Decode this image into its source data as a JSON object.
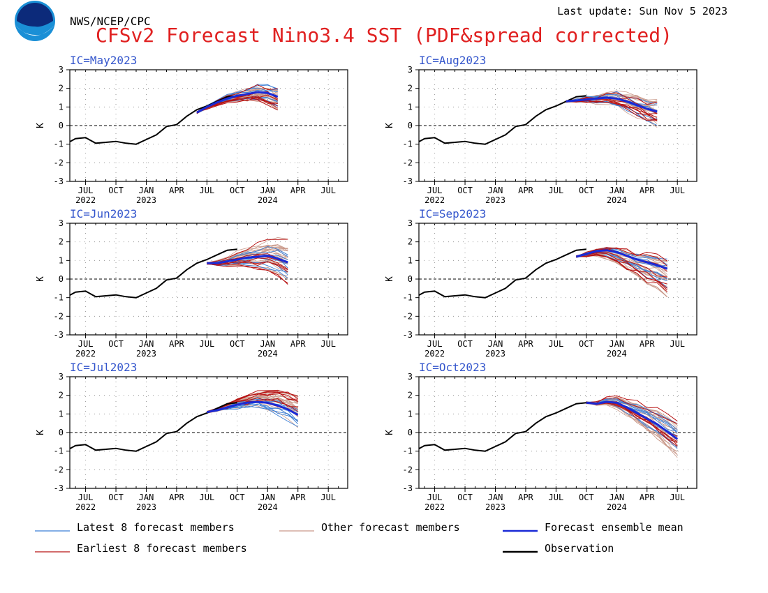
{
  "header": {
    "agency": "NWS/NCEP/CPC",
    "last_update": "Last update: Sun Nov 5 2023",
    "title": "CFSv2 Forecast Nino3.4 SST (PDF&spread corrected)",
    "logo_text": "NOAA"
  },
  "colors": {
    "title": "#e02020",
    "ic_label": "#3355cc",
    "latest": "#3a7fd6",
    "other": "#c9998a",
    "mean": "#1a2ad6",
    "earliest": "#b81414",
    "observation": "#000000",
    "grid": "#9a9a9a"
  },
  "legend": [
    {
      "key": "latest",
      "label": "Latest 8 forecast members"
    },
    {
      "key": "other",
      "label": "Other forecast members"
    },
    {
      "key": "mean",
      "label": "Forecast ensemble mean"
    },
    {
      "key": "earliest",
      "label": "Earliest 8 forecast members"
    },
    {
      "key": "observation",
      "label": "Observation"
    }
  ],
  "chart_data": [
    {
      "type": "line",
      "ic_label": "IC=May2023",
      "ylabel": "K",
      "ylim": [
        -3,
        3
      ],
      "y_ticks": [
        -3,
        -2,
        -1,
        0,
        1,
        2,
        3
      ],
      "x_tick_labels": [
        "JUL",
        "OCT",
        "JAN",
        "APR",
        "JUL",
        "OCT",
        "JAN",
        "APR",
        "JUL"
      ],
      "x_year_labels": [
        "2022",
        "2023",
        "2024"
      ],
      "observation": {
        "x": [
          "2022-05",
          "2022-06",
          "2022-07",
          "2022-08",
          "2022-09",
          "2022-10",
          "2022-11",
          "2022-12",
          "2023-01",
          "2023-02",
          "2023-03",
          "2023-04",
          "2023-05",
          "2023-06",
          "2023-07",
          "2023-08",
          "2023-09",
          "2023-10"
        ],
        "y": [
          -1.0,
          -0.7,
          -0.65,
          -0.95,
          -0.9,
          -0.85,
          -0.95,
          -1.0,
          -0.75,
          -0.5,
          -0.05,
          0.05,
          0.5,
          0.85,
          1.05,
          1.3,
          1.55,
          1.6
        ]
      },
      "forecast_x": [
        "2023-06",
        "2023-07",
        "2023-08",
        "2023-09",
        "2023-10",
        "2023-11",
        "2023-12",
        "2024-01",
        "2024-02"
      ],
      "ensemble_mean": [
        0.7,
        1.0,
        1.25,
        1.45,
        1.6,
        1.7,
        1.8,
        1.75,
        1.55
      ],
      "spread_end": [
        0.8,
        2.2
      ]
    },
    {
      "type": "line",
      "ic_label": "IC=Aug2023",
      "ylabel": "K",
      "ylim": [
        -3,
        3
      ],
      "y_ticks": [
        -3,
        -2,
        -1,
        0,
        1,
        2,
        3
      ],
      "x_tick_labels": [
        "JUL",
        "OCT",
        "JAN",
        "APR",
        "JUL",
        "OCT",
        "JAN",
        "APR",
        "JUL"
      ],
      "x_year_labels": [
        "2022",
        "2023",
        "2024"
      ],
      "observation": {
        "x": [
          "2022-05",
          "2022-06",
          "2022-07",
          "2022-08",
          "2022-09",
          "2022-10",
          "2022-11",
          "2022-12",
          "2023-01",
          "2023-02",
          "2023-03",
          "2023-04",
          "2023-05",
          "2023-06",
          "2023-07",
          "2023-08",
          "2023-09",
          "2023-10"
        ],
        "y": [
          -1.0,
          -0.7,
          -0.65,
          -0.95,
          -0.9,
          -0.85,
          -0.95,
          -1.0,
          -0.75,
          -0.5,
          -0.05,
          0.05,
          0.5,
          0.85,
          1.05,
          1.3,
          1.55,
          1.6
        ]
      },
      "forecast_x": [
        "2023-08",
        "2023-09",
        "2023-10",
        "2023-11",
        "2023-12",
        "2024-01",
        "2024-02",
        "2024-03",
        "2024-04",
        "2024-05"
      ],
      "ensemble_mean": [
        1.3,
        1.35,
        1.4,
        1.45,
        1.5,
        1.45,
        1.3,
        1.1,
        0.9,
        0.75
      ],
      "spread_end": [
        -0.3,
        1.5
      ]
    },
    {
      "type": "line",
      "ic_label": "IC=Jun2023",
      "ylabel": "K",
      "ylim": [
        -3,
        3
      ],
      "y_ticks": [
        -3,
        -2,
        -1,
        0,
        1,
        2,
        3
      ],
      "x_tick_labels": [
        "JUL",
        "OCT",
        "JAN",
        "APR",
        "JUL",
        "OCT",
        "JAN",
        "APR",
        "JUL"
      ],
      "x_year_labels": [
        "2022",
        "2023",
        "2024"
      ],
      "observation": {
        "x": [
          "2022-05",
          "2022-06",
          "2022-07",
          "2022-08",
          "2022-09",
          "2022-10",
          "2022-11",
          "2022-12",
          "2023-01",
          "2023-02",
          "2023-03",
          "2023-04",
          "2023-05",
          "2023-06",
          "2023-07",
          "2023-08",
          "2023-09",
          "2023-10"
        ],
        "y": [
          -1.0,
          -0.7,
          -0.65,
          -0.95,
          -0.9,
          -0.85,
          -0.95,
          -1.0,
          -0.75,
          -0.5,
          -0.05,
          0.05,
          0.5,
          0.85,
          1.05,
          1.3,
          1.55,
          1.6
        ]
      },
      "forecast_x": [
        "2023-07",
        "2023-08",
        "2023-09",
        "2023-10",
        "2023-11",
        "2023-12",
        "2024-01",
        "2024-02",
        "2024-03"
      ],
      "ensemble_mean": [
        0.85,
        0.85,
        0.95,
        1.05,
        1.15,
        1.2,
        1.25,
        1.1,
        0.9
      ],
      "spread_end": [
        -0.3,
        2.4
      ]
    },
    {
      "type": "line",
      "ic_label": "IC=Sep2023",
      "ylabel": "K",
      "ylim": [
        -3,
        3
      ],
      "y_ticks": [
        -3,
        -2,
        -1,
        0,
        1,
        2,
        3
      ],
      "x_tick_labels": [
        "JUL",
        "OCT",
        "JAN",
        "APR",
        "JUL",
        "OCT",
        "JAN",
        "APR",
        "JUL"
      ],
      "x_year_labels": [
        "2022",
        "2023",
        "2024"
      ],
      "observation": {
        "x": [
          "2022-05",
          "2022-06",
          "2022-07",
          "2022-08",
          "2022-09",
          "2022-10",
          "2022-11",
          "2022-12",
          "2023-01",
          "2023-02",
          "2023-03",
          "2023-04",
          "2023-05",
          "2023-06",
          "2023-07",
          "2023-08",
          "2023-09",
          "2023-10"
        ],
        "y": [
          -1.0,
          -0.7,
          -0.65,
          -0.95,
          -0.9,
          -0.85,
          -0.95,
          -1.0,
          -0.75,
          -0.5,
          -0.05,
          0.05,
          0.5,
          0.85,
          1.05,
          1.3,
          1.55,
          1.6
        ]
      },
      "forecast_x": [
        "2023-09",
        "2023-10",
        "2023-11",
        "2023-12",
        "2024-01",
        "2024-02",
        "2024-03",
        "2024-04",
        "2024-05",
        "2024-06"
      ],
      "ensemble_mean": [
        1.2,
        1.35,
        1.5,
        1.55,
        1.45,
        1.25,
        1.05,
        0.9,
        0.75,
        0.55
      ],
      "spread_end": [
        -1.4,
        1.3
      ]
    },
    {
      "type": "line",
      "ic_label": "IC=Jul2023",
      "ylabel": "K",
      "ylim": [
        -3,
        3
      ],
      "y_ticks": [
        -3,
        -2,
        -1,
        0,
        1,
        2,
        3
      ],
      "x_tick_labels": [
        "JUL",
        "OCT",
        "JAN",
        "APR",
        "JUL",
        "OCT",
        "JAN",
        "APR",
        "JUL"
      ],
      "x_year_labels": [
        "2022",
        "2023",
        "2024"
      ],
      "observation": {
        "x": [
          "2022-05",
          "2022-06",
          "2022-07",
          "2022-08",
          "2022-09",
          "2022-10",
          "2022-11",
          "2022-12",
          "2023-01",
          "2023-02",
          "2023-03",
          "2023-04",
          "2023-05",
          "2023-06",
          "2023-07",
          "2023-08",
          "2023-09",
          "2023-10"
        ],
        "y": [
          -1.0,
          -0.7,
          -0.65,
          -0.95,
          -0.9,
          -0.85,
          -0.95,
          -1.0,
          -0.75,
          -0.5,
          -0.05,
          0.05,
          0.5,
          0.85,
          1.05,
          1.3,
          1.55,
          1.6
        ]
      },
      "forecast_x": [
        "2023-07",
        "2023-08",
        "2023-09",
        "2023-10",
        "2023-11",
        "2023-12",
        "2024-01",
        "2024-02",
        "2024-03",
        "2024-04"
      ],
      "ensemble_mean": [
        1.1,
        1.2,
        1.35,
        1.5,
        1.6,
        1.65,
        1.6,
        1.45,
        1.25,
        0.95
      ],
      "spread_end": [
        0.2,
        2.2
      ]
    },
    {
      "type": "line",
      "ic_label": "IC=Oct2023",
      "ylabel": "K",
      "ylim": [
        -3,
        3
      ],
      "y_ticks": [
        -3,
        -2,
        -1,
        0,
        1,
        2,
        3
      ],
      "x_tick_labels": [
        "JUL",
        "OCT",
        "JAN",
        "APR",
        "JUL",
        "OCT",
        "JAN",
        "APR",
        "JUL"
      ],
      "x_year_labels": [
        "2022",
        "2023",
        "2024"
      ],
      "observation": {
        "x": [
          "2022-05",
          "2022-06",
          "2022-07",
          "2022-08",
          "2022-09",
          "2022-10",
          "2022-11",
          "2022-12",
          "2023-01",
          "2023-02",
          "2023-03",
          "2023-04",
          "2023-05",
          "2023-06",
          "2023-07",
          "2023-08",
          "2023-09",
          "2023-10"
        ],
        "y": [
          -1.0,
          -0.7,
          -0.65,
          -0.95,
          -0.9,
          -0.85,
          -0.95,
          -1.0,
          -0.75,
          -0.5,
          -0.05,
          0.05,
          0.5,
          0.85,
          1.05,
          1.3,
          1.55,
          1.6
        ]
      },
      "forecast_x": [
        "2023-10",
        "2023-11",
        "2023-12",
        "2024-01",
        "2024-02",
        "2024-03",
        "2024-04",
        "2024-05",
        "2024-06",
        "2024-07"
      ],
      "ensemble_mean": [
        1.6,
        1.55,
        1.65,
        1.6,
        1.35,
        1.05,
        0.75,
        0.45,
        0.05,
        -0.35
      ],
      "spread_end": [
        -1.6,
        1.0
      ]
    }
  ]
}
